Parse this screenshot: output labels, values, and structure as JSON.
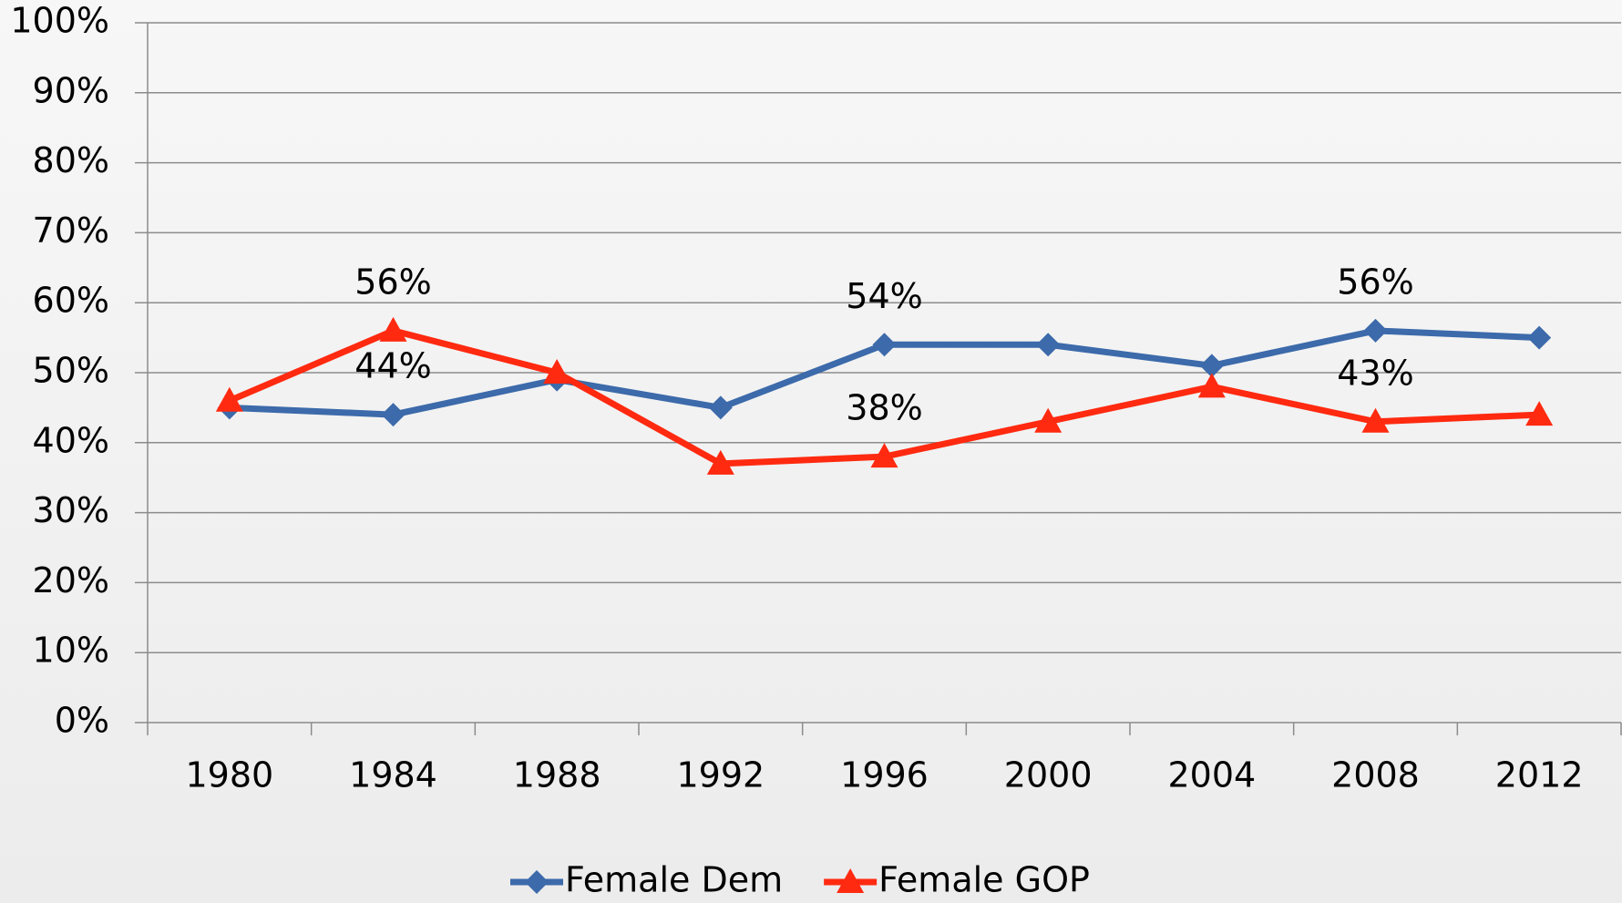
{
  "chart_data": {
    "type": "line",
    "categories": [
      "1980",
      "1984",
      "1988",
      "1992",
      "1996",
      "2000",
      "2004",
      "2008",
      "2012"
    ],
    "series": [
      {
        "name": "Female Dem",
        "color": "#3c6aaa",
        "marker": "diamond",
        "values": [
          45,
          44,
          49,
          45,
          54,
          54,
          51,
          56,
          55
        ],
        "value_labels": [
          null,
          "44%",
          null,
          null,
          "54%",
          null,
          null,
          "56%",
          null
        ]
      },
      {
        "name": "Female GOP",
        "color": "#ff2a10",
        "marker": "triangle",
        "values": [
          46,
          56,
          50,
          37,
          38,
          43,
          48,
          43,
          44
        ],
        "value_labels": [
          null,
          "56%",
          null,
          null,
          "38%",
          null,
          null,
          "43%",
          null
        ]
      }
    ],
    "ylim": [
      0,
      100
    ],
    "yticks": [
      {
        "value": 0,
        "label": "0%"
      },
      {
        "value": 10,
        "label": "10%"
      },
      {
        "value": 20,
        "label": "20%"
      },
      {
        "value": 30,
        "label": "30%"
      },
      {
        "value": 40,
        "label": "40%"
      },
      {
        "value": 50,
        "label": "50%"
      },
      {
        "value": 60,
        "label": "60%"
      },
      {
        "value": 70,
        "label": "70%"
      },
      {
        "value": 80,
        "label": "80%"
      },
      {
        "value": 90,
        "label": "90%"
      },
      {
        "value": 100,
        "label": "100%"
      }
    ],
    "grid": true,
    "legend": "bottom"
  }
}
